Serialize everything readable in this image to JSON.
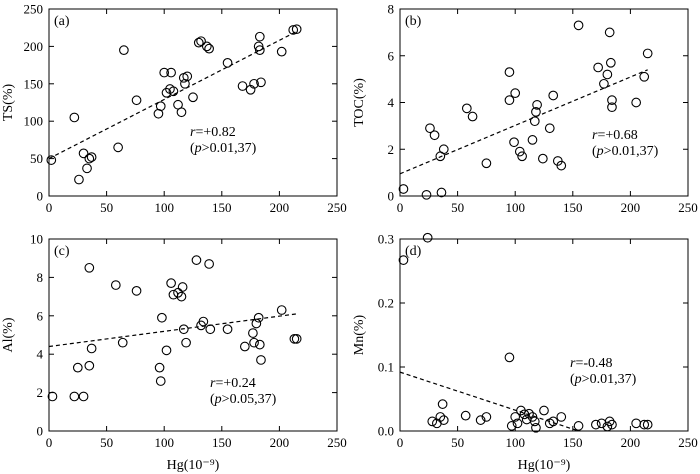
{
  "chart_data": [
    {
      "type": "scatter",
      "panel": "(a)",
      "xlabel": "",
      "ylabel": "TS(%)",
      "xlim": [
        0,
        250
      ],
      "ylim": [
        0,
        250
      ],
      "xticks": [
        "0",
        "50",
        "100",
        "150",
        "200",
        "250"
      ],
      "yticks": [
        "0",
        "50",
        "100",
        "150",
        "200",
        "250"
      ],
      "annotation": {
        "r_text": "=+0.82",
        "p_text": ">0.01,37)"
      },
      "trend": {
        "x": [
          0,
          215
        ],
        "y": [
          50,
          220
        ]
      },
      "points": [
        [
          2,
          48
        ],
        [
          22,
          105
        ],
        [
          26,
          22
        ],
        [
          30,
          57
        ],
        [
          33,
          37
        ],
        [
          35,
          50
        ],
        [
          37,
          52
        ],
        [
          60,
          65
        ],
        [
          65,
          195
        ],
        [
          76,
          128
        ],
        [
          95,
          110
        ],
        [
          97,
          120
        ],
        [
          100,
          165
        ],
        [
          102,
          138
        ],
        [
          105,
          143
        ],
        [
          106,
          165
        ],
        [
          108,
          140
        ],
        [
          112,
          122
        ],
        [
          115,
          112
        ],
        [
          117,
          158
        ],
        [
          118,
          150
        ],
        [
          120,
          160
        ],
        [
          125,
          132
        ],
        [
          130,
          205
        ],
        [
          132,
          207
        ],
        [
          137,
          200
        ],
        [
          139,
          197
        ],
        [
          155,
          178
        ],
        [
          168,
          147
        ],
        [
          175,
          142
        ],
        [
          178,
          150
        ],
        [
          182,
          200
        ],
        [
          183,
          195
        ],
        [
          183,
          213
        ],
        [
          184,
          152
        ],
        [
          202,
          193
        ],
        [
          212,
          222
        ],
        [
          215,
          223
        ]
      ]
    },
    {
      "type": "scatter",
      "panel": "(b)",
      "xlabel": "",
      "ylabel": "TOC(%)",
      "xlim": [
        0,
        250
      ],
      "ylim": [
        0,
        8
      ],
      "xticks": [
        "0",
        "50",
        "100",
        "150",
        "200",
        "250"
      ],
      "yticks": [
        "0",
        "2",
        "4",
        "6",
        "8"
      ],
      "annotation": {
        "r_text": "=+0.68",
        "p_text": ">0.01,37)"
      },
      "trend": {
        "x": [
          0,
          215
        ],
        "y": [
          0.95,
          5.4
        ]
      },
      "points": [
        [
          3,
          0.3
        ],
        [
          23,
          0.05
        ],
        [
          26,
          2.9
        ],
        [
          30,
          2.6
        ],
        [
          35,
          1.7
        ],
        [
          36,
          0.15
        ],
        [
          38,
          2.0
        ],
        [
          58,
          3.75
        ],
        [
          63,
          3.4
        ],
        [
          75,
          1.4
        ],
        [
          95,
          5.3
        ],
        [
          95,
          4.1
        ],
        [
          99,
          2.3
        ],
        [
          100,
          4.4
        ],
        [
          104,
          1.9
        ],
        [
          106,
          1.7
        ],
        [
          115,
          2.4
        ],
        [
          117,
          3.2
        ],
        [
          118,
          3.6
        ],
        [
          119,
          3.9
        ],
        [
          124,
          1.6
        ],
        [
          130,
          2.9
        ],
        [
          133,
          4.3
        ],
        [
          137,
          1.5
        ],
        [
          140,
          1.3
        ],
        [
          155,
          7.3
        ],
        [
          172,
          5.5
        ],
        [
          177,
          4.8
        ],
        [
          180,
          5.2
        ],
        [
          182,
          7.0
        ],
        [
          183,
          5.7
        ],
        [
          184,
          3.8
        ],
        [
          184,
          4.1
        ],
        [
          205,
          4.0
        ],
        [
          212,
          5.1
        ],
        [
          215,
          6.1
        ]
      ]
    },
    {
      "type": "scatter",
      "panel": "(c)",
      "xlabel": "Hg(10⁻⁹)",
      "ylabel": "Al(%)",
      "xlim": [
        0,
        250
      ],
      "ylim": [
        0,
        10
      ],
      "xticks": [
        "0",
        "50",
        "100",
        "150",
        "200",
        "250"
      ],
      "yticks": [
        "0",
        "2",
        "4",
        "6",
        "8",
        "10"
      ],
      "annotation": {
        "r_text": "=+0.24",
        "p_text": ">0.05,37)"
      },
      "trend": {
        "x": [
          0,
          215
        ],
        "y": [
          4.4,
          6.1
        ]
      },
      "points": [
        [
          3,
          1.8
        ],
        [
          22,
          1.8
        ],
        [
          25,
          3.3
        ],
        [
          30,
          1.8
        ],
        [
          35,
          8.5
        ],
        [
          35,
          3.4
        ],
        [
          37,
          4.3
        ],
        [
          58,
          7.6
        ],
        [
          64,
          4.6
        ],
        [
          76,
          7.3
        ],
        [
          96,
          3.3
        ],
        [
          97,
          2.6
        ],
        [
          98,
          5.9
        ],
        [
          102,
          4.2
        ],
        [
          106,
          7.7
        ],
        [
          108,
          7.1
        ],
        [
          112,
          7.2
        ],
        [
          115,
          7.0
        ],
        [
          116,
          7.5
        ],
        [
          117,
          5.3
        ],
        [
          119,
          4.6
        ],
        [
          128,
          8.9
        ],
        [
          132,
          5.5
        ],
        [
          134,
          5.7
        ],
        [
          139,
          8.7
        ],
        [
          140,
          5.3
        ],
        [
          155,
          5.3
        ],
        [
          170,
          4.4
        ],
        [
          177,
          5.1
        ],
        [
          178,
          4.6
        ],
        [
          180,
          5.6
        ],
        [
          182,
          5.9
        ],
        [
          183,
          4.5
        ],
        [
          184,
          3.7
        ],
        [
          202,
          6.3
        ],
        [
          213,
          4.8
        ],
        [
          215,
          4.8
        ]
      ]
    },
    {
      "type": "scatter",
      "panel": "(d)",
      "xlabel": "Hg(10⁻⁹)",
      "ylabel": "Mn(%)",
      "xlim": [
        0,
        250
      ],
      "ylim": [
        0,
        0.3
      ],
      "xticks": [
        "0",
        "50",
        "100",
        "150",
        "200",
        "250"
      ],
      "yticks": [
        "0.0",
        "0.1",
        "0.2",
        "0.3"
      ],
      "annotation": {
        "r_text": "=-0.48",
        "p_text": ">0.01,37)"
      },
      "trend": {
        "x": [
          0,
          155
        ],
        "y": [
          0.092,
          0.0
        ]
      },
      "points": [
        [
          3,
          0.267
        ],
        [
          24,
          0.302
        ],
        [
          28,
          0.015
        ],
        [
          32,
          0.012
        ],
        [
          35,
          0.022
        ],
        [
          37,
          0.042
        ],
        [
          38,
          0.017
        ],
        [
          57,
          0.024
        ],
        [
          70,
          0.017
        ],
        [
          75,
          0.022
        ],
        [
          95,
          0.115
        ],
        [
          97,
          0.008
        ],
        [
          100,
          0.022
        ],
        [
          102,
          0.012
        ],
        [
          105,
          0.032
        ],
        [
          108,
          0.026
        ],
        [
          110,
          0.018
        ],
        [
          112,
          0.027
        ],
        [
          115,
          0.022
        ],
        [
          117,
          0.015
        ],
        [
          118,
          0.005
        ],
        [
          125,
          0.032
        ],
        [
          130,
          0.012
        ],
        [
          133,
          0.015
        ],
        [
          140,
          0.022
        ],
        [
          155,
          0.008
        ],
        [
          170,
          0.01
        ],
        [
          175,
          0.012
        ],
        [
          180,
          0.007
        ],
        [
          182,
          0.015
        ],
        [
          184,
          0.01
        ],
        [
          205,
          0.012
        ],
        [
          212,
          0.01
        ],
        [
          215,
          0.01
        ]
      ]
    }
  ]
}
